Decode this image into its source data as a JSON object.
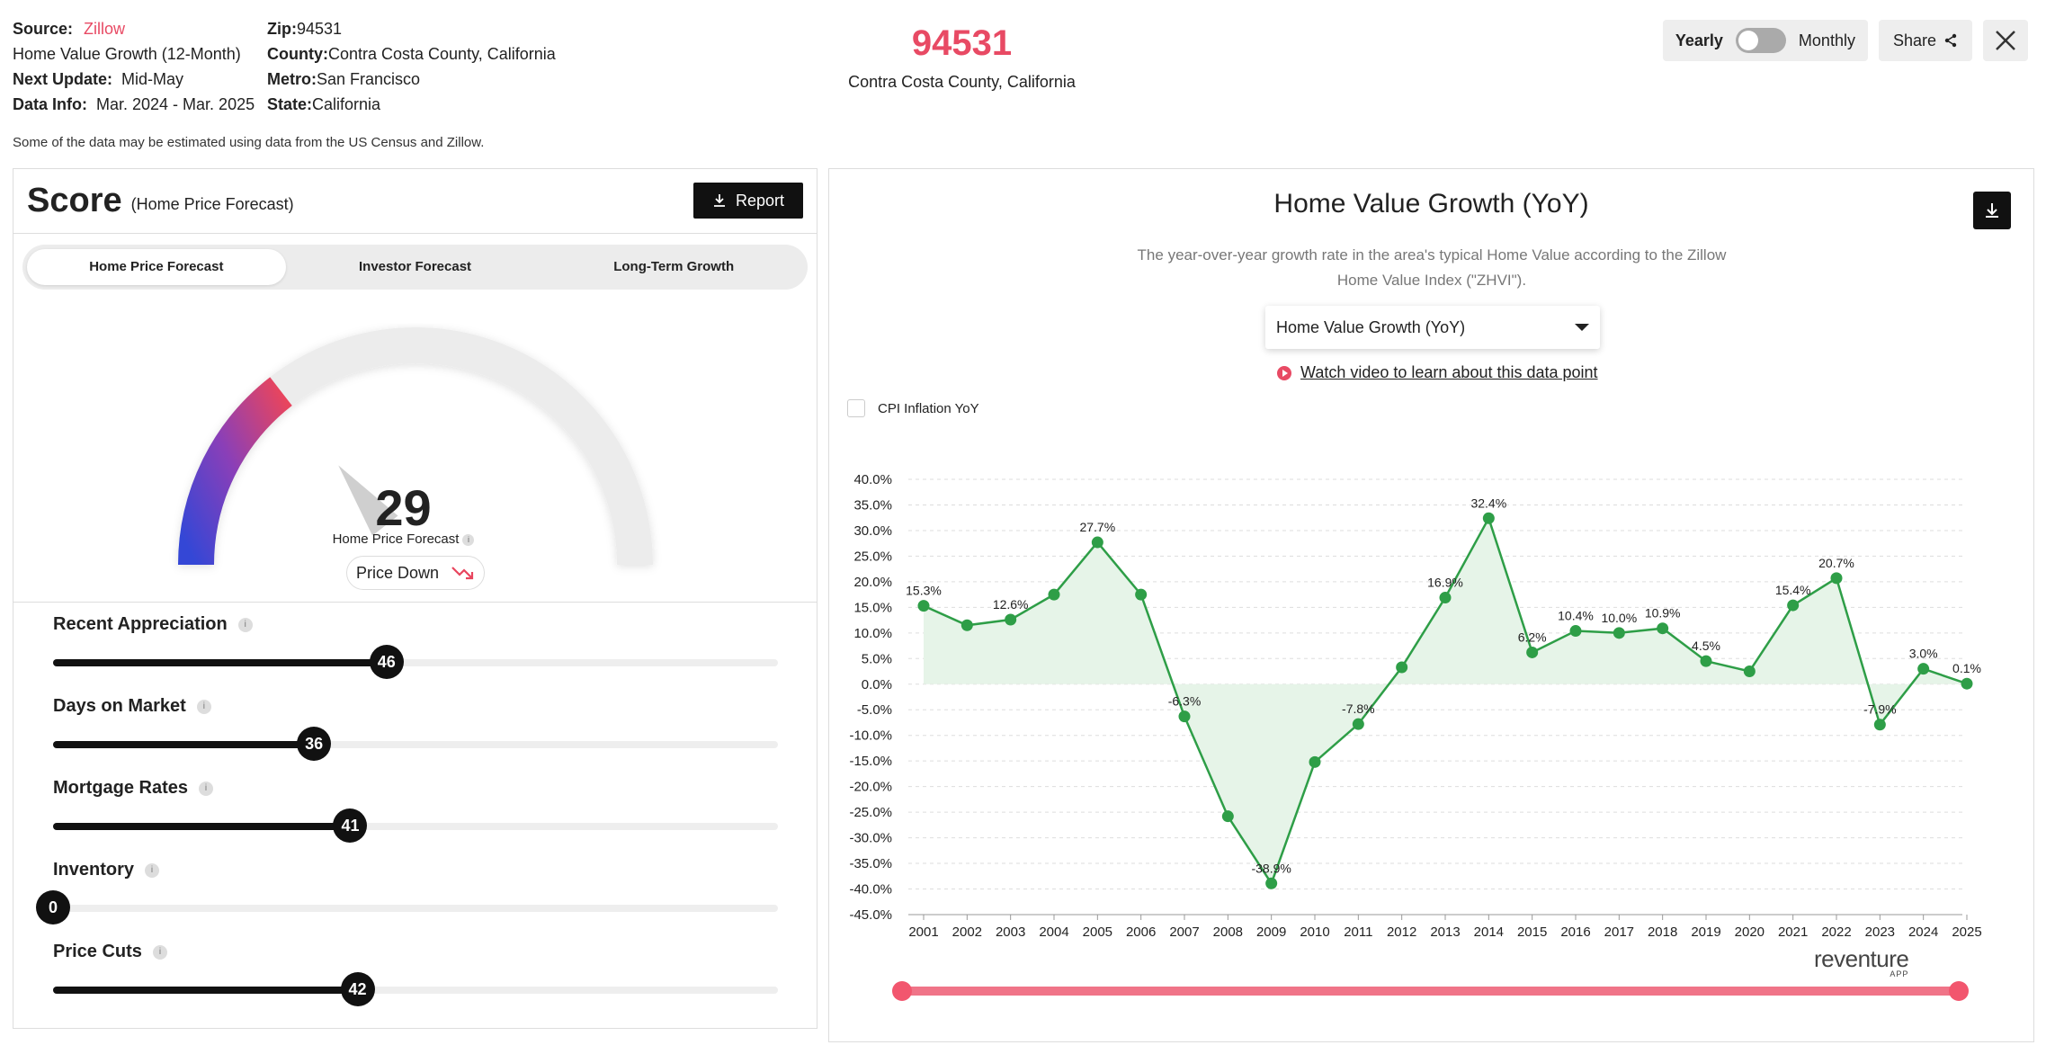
{
  "meta": {
    "source_label": "Source:",
    "source_value": "Zillow",
    "metric": "Home Value Growth (12-Month)",
    "next_update_label": "Next Update:",
    "next_update_value": "Mid-May",
    "data_info_label": "Data Info:",
    "data_info_value": "Mar. 2024 - Mar. 2025",
    "zip_label": "Zip:",
    "zip_value": "94531",
    "county_label": "County:",
    "county_value": "Contra Costa County, California",
    "metro_label": "Metro:",
    "metro_value": "San Francisco",
    "state_label": "State:",
    "state_value": "California",
    "note": "Some of the data may be estimated using data from the US Census and Zillow."
  },
  "header": {
    "zip": "94531",
    "county": "Contra Costa County, California",
    "yearly": "Yearly",
    "monthly": "Monthly",
    "share": "Share"
  },
  "score": {
    "title": "Score",
    "subtitle": "(Home Price Forecast)",
    "report": "Report",
    "tabs": [
      "Home Price Forecast",
      "Investor Forecast",
      "Long-Term Growth"
    ],
    "value": "29",
    "gauge_fraction": 0.29,
    "label": "Home Price Forecast",
    "trend": "Price Down",
    "factors": [
      {
        "name": "Recent Appreciation",
        "value": 46
      },
      {
        "name": "Days on Market",
        "value": 36
      },
      {
        "name": "Mortgage Rates",
        "value": 41
      },
      {
        "name": "Inventory",
        "value": 0
      },
      {
        "name": "Price Cuts",
        "value": 42
      }
    ]
  },
  "panel": {
    "title": "Home Value Growth (YoY)",
    "description": "The year-over-year growth rate in the area's typical Home Value according to the Zillow Home Value Index (\"ZHVI\").",
    "select_value": "Home Value Growth (YoY)",
    "video_link": "Watch video to learn about this data point",
    "cpi_label": "CPI Inflation YoY",
    "brand": "reventure",
    "brand_sub": "APP"
  },
  "chart_data": {
    "type": "line",
    "title": "Home Value Growth (YoY)",
    "x": [
      "2001",
      "2002",
      "2003",
      "2004",
      "2005",
      "2006",
      "2007",
      "2008",
      "2009",
      "2010",
      "2011",
      "2012",
      "2013",
      "2014",
      "2015",
      "2016",
      "2017",
      "2018",
      "2019",
      "2020",
      "2021",
      "2022",
      "2023",
      "2024",
      "2025"
    ],
    "values": [
      15.3,
      11.5,
      12.6,
      17.5,
      27.7,
      17.5,
      -6.3,
      -25.8,
      -38.9,
      -15.2,
      -7.8,
      3.3,
      16.9,
      32.4,
      6.2,
      10.4,
      10.0,
      10.9,
      4.5,
      2.5,
      15.4,
      20.7,
      -7.9,
      3.0,
      0.1
    ],
    "labeled": [
      "15.3%",
      null,
      "12.6%",
      null,
      "27.7%",
      null,
      "-6.3%",
      null,
      "-38.9%",
      null,
      "-7.8%",
      null,
      "16.9%",
      "32.4%",
      "6.2%",
      "10.4%",
      "10.0%",
      "10.9%",
      "4.5%",
      null,
      "15.4%",
      "20.7%",
      "-7.9%",
      "3.0%",
      "0.1%"
    ],
    "yticks": [
      "40.0%",
      "35.0%",
      "30.0%",
      "25.0%",
      "20.0%",
      "15.0%",
      "10.0%",
      "5.0%",
      "0.0%",
      "-5.0%",
      "-10.0%",
      "-15.0%",
      "-20.0%",
      "-25.0%",
      "-30.0%",
      "-35.0%",
      "-40.0%",
      "-45.0%"
    ],
    "ylim": [
      -45,
      40
    ],
    "grid": true,
    "color": "#2e9e47",
    "fill": "#e6f4e8"
  }
}
